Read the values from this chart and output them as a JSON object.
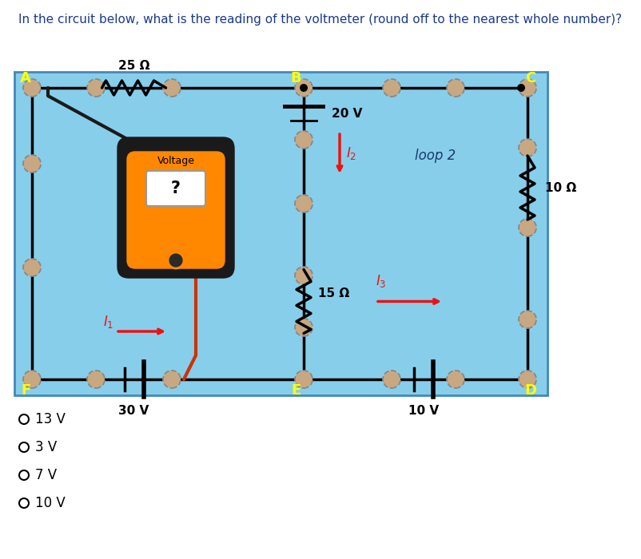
{
  "title": "In the circuit below, what is the reading of the voltmeter (round off to the nearest whole number)?",
  "title_color": "#1a3a8a",
  "title_fontsize": 11,
  "bg_color": "#87CEEB",
  "options": [
    "○ 13 V",
    "○ 3 V",
    "○ 7 V",
    "○ 10 V"
  ],
  "node_color": "#C8A882",
  "node_edge": "#888888",
  "wire_color": "black",
  "wire_lw": 2.5,
  "corner_label_color": "yellow",
  "resistor_25_label": "25 Ω",
  "resistor_15_label": "15 Ω",
  "resistor_10_label": "10 Ω",
  "battery_20_label": "20 V",
  "battery_30_label": "30 V",
  "battery_10_label": "10 V",
  "loop2_label": "loop 2",
  "voltmeter_label": "Voltage",
  "voltmeter_q": "?",
  "I1_label": "I",
  "I2_label": "I",
  "I3_label": "I",
  "red_color": "#EE1111",
  "vm_black": "#1a1a1a",
  "vm_orange": "#FF8800"
}
